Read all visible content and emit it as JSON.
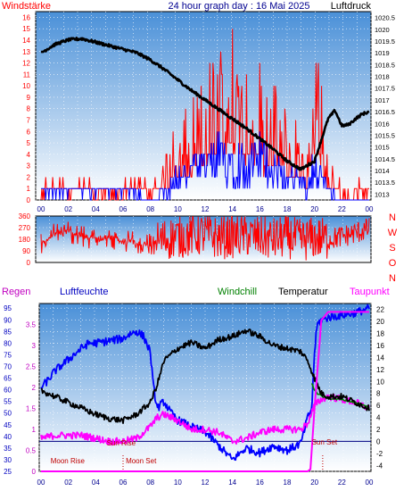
{
  "header": {
    "left_label": "Windstärke",
    "title": "24 hour graph day : 16 Mai 2025",
    "right_label": "Luftdruck"
  },
  "colors": {
    "wind": "#ff0000",
    "gust": "#0000ff",
    "pressure": "#000000",
    "humidity": "#0000ff",
    "temperature": "#000000",
    "dewpoint": "#ff00ff",
    "windchill": "#008000",
    "rain": "#ff00ff",
    "bg_top": "#5b9fd8",
    "bg_bottom": "#ffffff"
  },
  "chart_data": [
    {
      "type": "line",
      "name": "wind-pressure-panel",
      "x_ticks": [
        "00",
        "02",
        "04",
        "06",
        "08",
        "10",
        "12",
        "14",
        "16",
        "18",
        "20",
        "22",
        "00"
      ],
      "y_left": {
        "label": "Windstärke",
        "ylim": [
          0,
          16.5
        ],
        "ticks": [
          "0",
          "1",
          "2",
          "3",
          "4",
          "5",
          "6",
          "7",
          "8",
          "9",
          "10",
          "11",
          "12",
          "13",
          "14",
          "15",
          "16"
        ]
      },
      "y_right": {
        "label": "Luftdruck",
        "ylim": [
          1012.75,
          1020.75
        ],
        "ticks": [
          "1013",
          "1013.5",
          "1014",
          "1014.5",
          "1015",
          "1015.5",
          "1016",
          "1016.5",
          "1017",
          "1017.5",
          "1018",
          "1018.5",
          "1019",
          "1019.5",
          "1020",
          "1020.5"
        ]
      },
      "grid": true,
      "series": [
        {
          "key": "pressure",
          "axis": "right",
          "x": [
            0,
            1,
            2,
            3,
            4,
            5,
            6,
            7,
            8,
            9,
            10,
            11,
            12,
            13,
            14,
            15,
            16,
            17,
            18,
            19,
            20,
            20.5,
            21,
            21.5,
            22,
            22.5,
            23,
            23.5,
            24
          ],
          "y": [
            1019.0,
            1019.35,
            1019.55,
            1019.6,
            1019.45,
            1019.3,
            1019.15,
            1019.0,
            1018.7,
            1018.3,
            1017.85,
            1017.4,
            1017.0,
            1016.6,
            1016.2,
            1015.8,
            1015.35,
            1014.9,
            1014.4,
            1014.05,
            1014.4,
            1015.3,
            1016.2,
            1016.55,
            1015.9,
            1015.95,
            1016.2,
            1016.4,
            1016.5
          ]
        },
        {
          "key": "wind",
          "axis": "left",
          "x": [
            0,
            1,
            2,
            3,
            4,
            5,
            6,
            7,
            8,
            9,
            10,
            11,
            12,
            13,
            14,
            15,
            16,
            17,
            18,
            19,
            19.5,
            20,
            20.5,
            21,
            22,
            23,
            24
          ],
          "y": [
            1,
            2,
            1,
            2,
            1,
            1,
            1,
            2,
            1,
            3,
            5,
            6,
            9,
            10,
            12,
            10,
            9,
            8,
            6,
            5,
            3,
            15,
            8,
            3,
            1,
            1,
            2
          ]
        },
        {
          "key": "gust",
          "axis": "left",
          "x": [
            0,
            1,
            2,
            3,
            4,
            5,
            6,
            7,
            8,
            9,
            10,
            11,
            12,
            13,
            14,
            15,
            16,
            17,
            18,
            19,
            19.5,
            20,
            20.5,
            21,
            22,
            23,
            24
          ],
          "y": [
            1,
            1,
            1,
            1,
            1,
            1,
            1,
            1,
            0,
            1,
            2,
            3,
            3,
            4,
            4,
            3,
            4,
            3,
            2,
            2,
            1,
            4,
            2,
            1,
            0,
            0,
            0
          ]
        }
      ]
    },
    {
      "type": "line",
      "name": "wind-direction-panel",
      "x_ticks": [
        "00",
        "02",
        "04",
        "06",
        "08",
        "10",
        "12",
        "14",
        "16",
        "18",
        "20",
        "22",
        "00"
      ],
      "y_left": {
        "ylim": [
          0,
          360
        ],
        "ticks": [
          "0",
          "90",
          "180",
          "270",
          "360"
        ]
      },
      "y_right": {
        "ticks": [
          "N",
          "W",
          "S",
          "O",
          "N"
        ]
      },
      "grid": true,
      "series": [
        {
          "key": "direction",
          "x": [
            0,
            1,
            2,
            3,
            4,
            5,
            6,
            7,
            8,
            9,
            10,
            11,
            12,
            13,
            14,
            15,
            16,
            17,
            18,
            19,
            20,
            21,
            22,
            23,
            24
          ],
          "y": [
            150,
            220,
            240,
            210,
            180,
            200,
            160,
            150,
            140,
            180,
            200,
            210,
            220,
            190,
            200,
            210,
            190,
            180,
            200,
            170,
            190,
            180,
            200,
            230,
            260
          ]
        }
      ]
    },
    {
      "type": "line",
      "name": "temp-humidity-panel",
      "header": {
        "rain": "Regen",
        "humidity": "Luftfeuchte",
        "windchill": "Windchill",
        "temperature": "Temperatur",
        "dewpoint": "Taupunkt"
      },
      "x_ticks": [
        "00",
        "02",
        "04",
        "06",
        "08",
        "10",
        "12",
        "14",
        "16",
        "18",
        "20",
        "22",
        "00"
      ],
      "y_humidity": {
        "ylim": [
          25,
          97
        ],
        "ticks": [
          "25",
          "30",
          "35",
          "40",
          "45",
          "50",
          "55",
          "60",
          "65",
          "70",
          "75",
          "80",
          "85",
          "90",
          "95"
        ]
      },
      "y_rain": {
        "ylim": [
          0,
          4
        ],
        "ticks": [
          "0",
          "0.5",
          "1",
          "1.5",
          "2",
          "2.5",
          "3",
          "3.5"
        ]
      },
      "y_temp": {
        "ylim": [
          -5,
          23
        ],
        "ticks": [
          "-4",
          "-2",
          "0",
          "2",
          "4",
          "6",
          "8",
          "10",
          "12",
          "14",
          "16",
          "18",
          "20",
          "22"
        ]
      },
      "annotations": [
        {
          "text": "Moon Rise",
          "x": 0.7
        },
        {
          "text": "Sun Rise",
          "x": 4.8
        },
        {
          "text": "Moon Set",
          "x": 6.2
        },
        {
          "text": "Sun Set",
          "x": 19.8
        }
      ],
      "grid": true,
      "series": [
        {
          "key": "humidity",
          "axis": "humidity",
          "x": [
            0,
            0.5,
            1,
            2,
            3,
            3.5,
            4,
            5,
            6,
            6.5,
            7,
            7.5,
            8,
            8.2,
            8.5,
            9,
            9.5,
            10,
            11,
            12,
            13,
            14,
            15,
            16,
            17,
            18,
            19,
            19.5,
            19.8,
            20,
            20.2,
            20.5,
            21,
            22,
            23,
            24
          ],
          "y": [
            61,
            64,
            68,
            73,
            78,
            80,
            80,
            81,
            82,
            84,
            85,
            83,
            76,
            62,
            52,
            55,
            50,
            47,
            44,
            42,
            36,
            30,
            35,
            33,
            36,
            34,
            37,
            48,
            52,
            76,
            88,
            90,
            91,
            92,
            93,
            95
          ]
        },
        {
          "key": "temperature",
          "axis": "temp",
          "x": [
            0,
            1,
            2,
            3,
            4,
            5,
            6,
            7,
            8,
            8.5,
            9,
            10,
            11,
            12,
            13,
            14,
            15,
            16,
            17,
            18,
            19,
            19.5,
            20,
            20.5,
            21,
            22,
            23,
            24
          ],
          "y": [
            8.5,
            7.5,
            6.5,
            5.5,
            4.5,
            3.8,
            3.5,
            4.5,
            6.5,
            9.5,
            13.5,
            15.5,
            16.5,
            15.5,
            17.0,
            17.5,
            18.5,
            17.5,
            16.0,
            15.5,
            15.0,
            13.5,
            10.5,
            8.0,
            7.5,
            7.5,
            6.5,
            5.5
          ]
        },
        {
          "key": "windchill",
          "axis": "temp",
          "x": [
            19.8,
            20,
            20.3,
            20.6,
            21,
            22,
            23,
            24
          ],
          "y": [
            9.8,
            8.5,
            7.8,
            7.5,
            7.2,
            7.0,
            6.5,
            5.6
          ]
        },
        {
          "key": "dewpoint",
          "axis": "temp",
          "x": [
            0,
            1,
            2,
            3,
            4,
            5,
            6,
            7,
            7.5,
            8,
            8.5,
            9,
            10,
            11,
            12,
            13,
            14,
            15,
            16,
            17,
            18,
            19,
            19.5,
            20,
            20.5,
            21,
            22,
            23,
            24
          ],
          "y": [
            0.5,
            1.0,
            1.0,
            1.0,
            0.5,
            0.0,
            0.0,
            0.5,
            1.5,
            2.5,
            4.0,
            4.5,
            3.5,
            2.0,
            2.0,
            1.5,
            0.0,
            0.5,
            1.5,
            2.0,
            2.0,
            2.0,
            3.0,
            6.0,
            7.0,
            7.5,
            7.0,
            6.5,
            5.5
          ]
        },
        {
          "key": "rain",
          "axis": "rain",
          "x": [
            0,
            19.5,
            19.7,
            20.0,
            20.5,
            21,
            22,
            23,
            24
          ],
          "y": [
            0,
            0,
            0.05,
            1.5,
            3.6,
            3.8,
            3.8,
            3.8,
            3.8
          ]
        }
      ]
    }
  ]
}
